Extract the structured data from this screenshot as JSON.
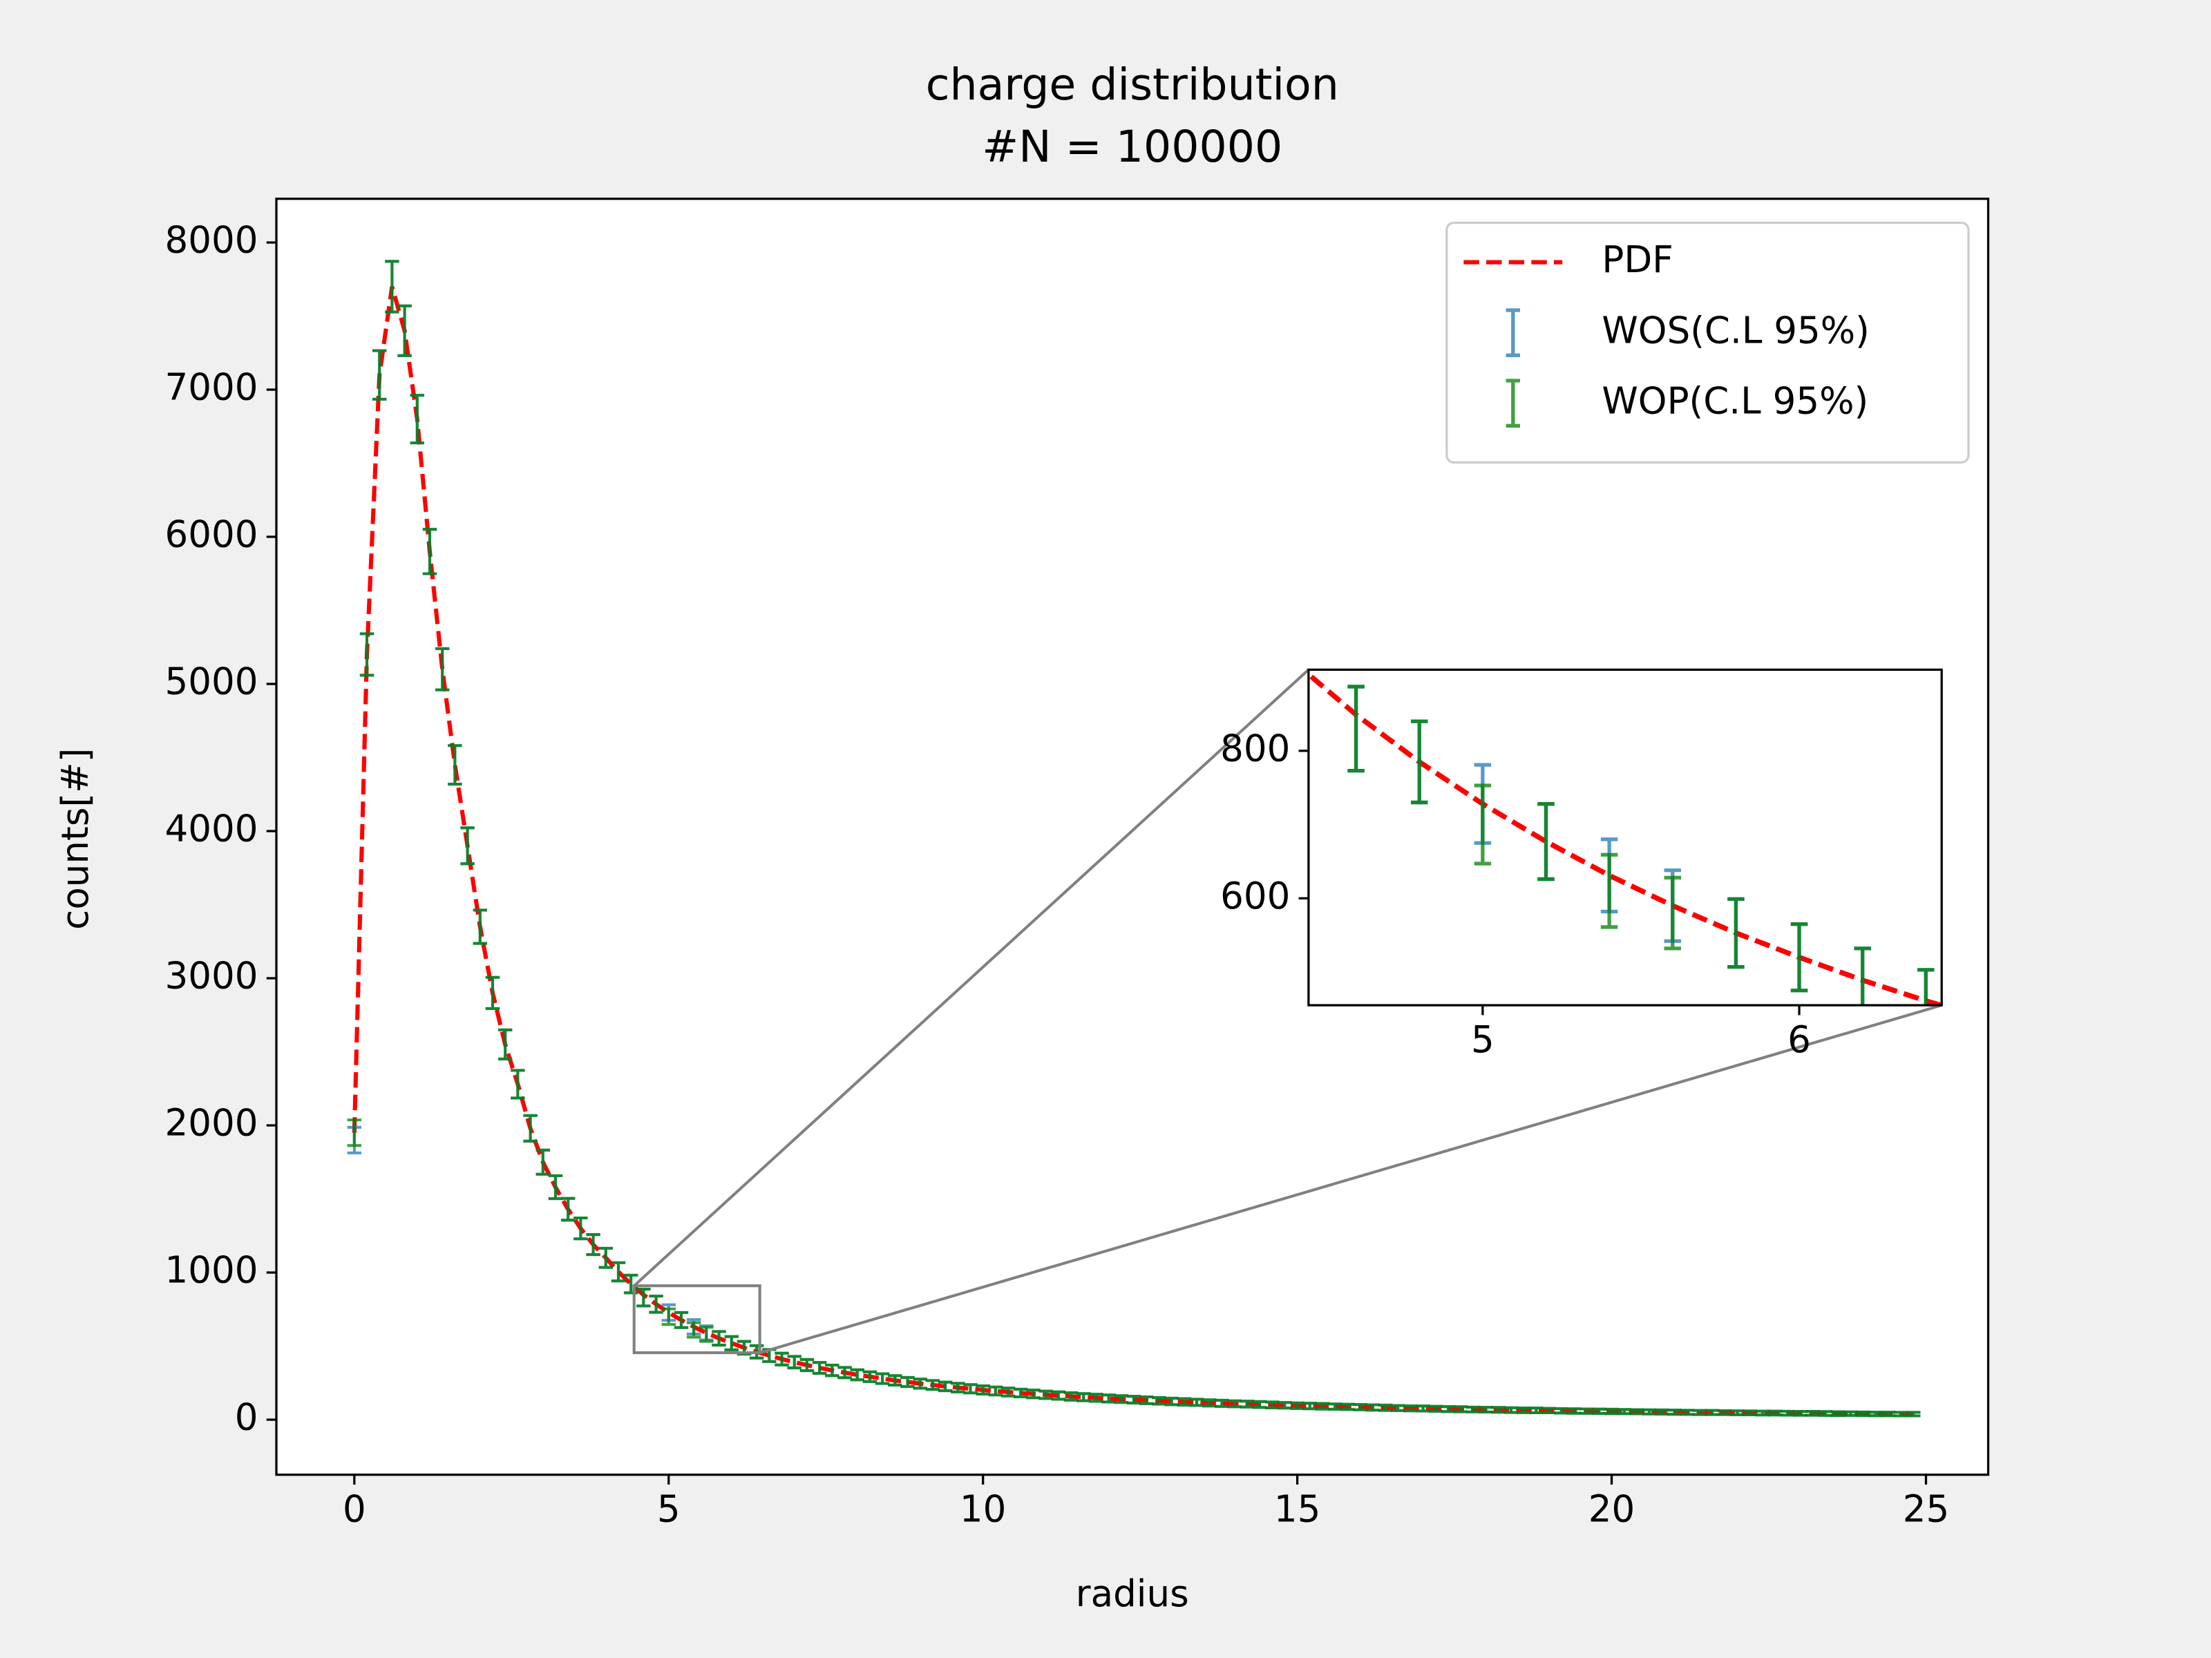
{
  "chart_data": {
    "type": "errorbar",
    "title": "charge distribution",
    "subtitle": "#N = 100000",
    "x_label": "radius",
    "y_label": "counts[#]",
    "xlim": [
      -1.24,
      25.99
    ],
    "ylim": [
      -374,
      8297
    ],
    "xticks": [
      0,
      5,
      10,
      15,
      20,
      25
    ],
    "yticks": [
      0,
      1000,
      2000,
      3000,
      4000,
      5000,
      6000,
      7000,
      8000
    ],
    "legend": "upper right",
    "x": [
      0,
      0.2,
      0.4,
      0.6,
      0.8,
      1,
      1.2,
      1.4,
      1.6,
      1.8,
      2,
      2.2,
      2.4,
      2.6,
      2.8,
      3,
      3.2,
      3.4,
      3.6,
      3.8,
      4,
      4.2,
      4.4,
      4.6,
      4.8,
      5,
      5.2,
      5.4,
      5.6,
      5.8,
      6,
      6.2,
      6.4,
      6.6,
      6.8,
      7,
      7.2,
      7.4,
      7.6,
      7.8,
      8,
      8.2,
      8.4,
      8.6,
      8.8,
      9,
      9.2,
      9.4,
      9.6,
      9.8,
      10,
      10.2,
      10.4,
      10.6,
      10.8,
      11,
      11.2,
      11.4,
      11.6,
      11.8,
      12,
      12.2,
      12.4,
      12.6,
      12.8,
      13,
      13.2,
      13.4,
      13.6,
      13.8,
      14,
      14.2,
      14.4,
      14.6,
      14.8,
      15,
      15.2,
      15.4,
      15.6,
      15.8,
      16,
      16.2,
      16.4,
      16.6,
      16.8,
      17,
      17.2,
      17.4,
      17.6,
      17.8,
      18,
      18.2,
      18.4,
      18.6,
      18.8,
      19,
      19.2,
      19.4,
      19.6,
      19.8,
      20,
      20.2,
      20.4,
      20.6,
      20.8,
      21,
      21.2,
      21.4,
      21.6,
      21.8,
      22,
      22.2,
      22.4,
      22.6,
      22.8,
      23,
      23.2,
      23.4,
      23.6,
      23.8,
      24,
      24.2,
      24.4,
      24.6,
      24.8
    ],
    "series": [
      {
        "name": "PDF",
        "type": "line",
        "color": "#ff0000",
        "dashed": true,
        "values": [
          1950,
          5200,
          7100,
          7700,
          7400,
          6800,
          5900,
          5100,
          4450,
          3900,
          3350,
          2900,
          2550,
          2280,
          1980,
          1750,
          1580,
          1430,
          1300,
          1190,
          1100,
          1005,
          922,
          849,
          785,
          728,
          677,
          631,
          590,
          553,
          520,
          489,
          461,
          436,
          412,
          391,
          371,
          352,
          335,
          320,
          305,
          292,
          279,
          267,
          256,
          245,
          236,
          226,
          218,
          210,
          202,
          195,
          188,
          181,
          175,
          169,
          164,
          158,
          153,
          149,
          144,
          140,
          136,
          132,
          128,
          124,
          121,
          118,
          114,
          111,
          108,
          106,
          103,
          100,
          98,
          95,
          93,
          91,
          89,
          87,
          85,
          83,
          81,
          79,
          77,
          76,
          74,
          72,
          71,
          69,
          68,
          67,
          65,
          64,
          63,
          62,
          60,
          59,
          58,
          57,
          56,
          55,
          54,
          53,
          52,
          51,
          50,
          49,
          49,
          48,
          47,
          46,
          45,
          45,
          44,
          43,
          43,
          42,
          41,
          41,
          40,
          39,
          39,
          38,
          38
        ]
      },
      {
        "name": "WOS(C.L 95%)",
        "type": "errorbar",
        "color": "#1f77b4",
        "values": [
          1900,
          5200,
          7100,
          7700,
          7400,
          6800,
          5900,
          5100,
          4450,
          3900,
          3350,
          2900,
          2550,
          2280,
          1980,
          1750,
          1580,
          1430,
          1300,
          1190,
          1100,
          1005,
          922,
          830,
          785,
          728,
          677,
          631,
          590,
          553,
          520,
          489,
          461,
          436,
          412,
          391,
          371,
          352,
          335,
          320,
          305,
          292,
          279,
          267,
          256,
          245,
          236,
          226,
          218,
          210,
          202,
          195,
          188,
          181,
          175,
          169,
          164,
          158,
          153,
          149,
          144,
          140,
          136,
          132,
          128,
          124,
          121,
          118,
          114,
          111,
          108,
          106,
          103,
          100,
          98,
          95,
          93,
          91,
          89,
          87,
          85,
          83,
          81,
          79,
          77,
          76,
          74,
          72,
          71,
          69,
          68,
          67,
          65,
          64,
          63,
          62,
          60,
          59,
          58,
          57,
          56,
          55,
          54,
          53,
          52,
          51,
          50,
          49,
          49,
          48,
          47,
          46,
          45,
          45,
          44,
          43,
          43,
          42,
          41,
          41,
          40,
          39,
          39,
          38,
          38
        ],
        "errors": [
          87,
          141,
          165,
          172,
          169,
          162,
          151,
          140,
          131,
          122,
          113,
          106,
          99,
          94,
          87,
          82,
          78,
          74,
          71,
          68,
          65,
          62,
          60,
          57,
          55,
          53,
          51,
          49,
          48,
          46,
          45,
          43,
          42,
          41,
          40,
          39,
          38,
          37,
          36,
          35,
          34,
          33,
          33,
          32,
          31,
          31,
          30,
          29,
          29,
          28,
          28,
          27,
          27,
          26,
          26,
          25,
          25,
          25,
          24,
          24,
          24,
          23,
          23,
          23,
          22,
          22,
          22,
          21,
          21,
          21,
          20,
          20,
          20,
          20,
          19,
          19,
          19,
          19,
          18,
          18,
          18,
          18,
          18,
          17,
          17,
          17,
          17,
          17,
          17,
          16,
          16,
          16,
          16,
          16,
          16,
          15,
          15,
          15,
          15,
          15,
          15,
          14,
          14,
          14,
          14,
          14,
          14,
          14,
          14,
          13,
          13,
          13,
          13,
          13,
          13,
          13,
          13,
          13,
          13,
          12,
          12,
          12,
          12,
          12,
          12
        ]
      },
      {
        "name": "WOP(C.L 95%)",
        "type": "errorbar",
        "color": "#008000",
        "values": [
          1950,
          5200,
          7100,
          7700,
          7400,
          6800,
          5900,
          5100,
          4450,
          3900,
          3350,
          2900,
          2550,
          2280,
          1980,
          1750,
          1580,
          1430,
          1300,
          1190,
          1100,
          1005,
          922,
          830,
          785,
          700,
          677,
          610,
          580,
          553,
          520,
          489,
          461,
          436,
          412,
          391,
          371,
          352,
          335,
          320,
          305,
          292,
          279,
          267,
          256,
          245,
          236,
          226,
          218,
          210,
          202,
          195,
          188,
          181,
          175,
          169,
          164,
          158,
          153,
          149,
          144,
          140,
          136,
          132,
          128,
          124,
          121,
          118,
          114,
          111,
          108,
          106,
          103,
          100,
          98,
          95,
          93,
          91,
          89,
          87,
          85,
          83,
          81,
          79,
          77,
          76,
          74,
          72,
          71,
          69,
          68,
          67,
          65,
          64,
          63,
          62,
          60,
          59,
          58,
          57,
          56,
          55,
          54,
          53,
          52,
          51,
          50,
          49,
          49,
          48,
          47,
          46,
          45,
          45,
          44,
          43,
          43,
          42,
          41,
          41,
          40,
          39,
          39,
          38,
          38
        ],
        "errors": [
          87,
          141,
          165,
          172,
          169,
          162,
          151,
          140,
          131,
          122,
          113,
          106,
          99,
          94,
          87,
          82,
          78,
          74,
          71,
          68,
          65,
          62,
          60,
          57,
          55,
          53,
          51,
          49,
          48,
          46,
          45,
          43,
          42,
          41,
          40,
          39,
          38,
          37,
          36,
          35,
          34,
          33,
          33,
          32,
          31,
          31,
          30,
          29,
          29,
          28,
          28,
          27,
          27,
          26,
          26,
          25,
          25,
          25,
          24,
          24,
          24,
          23,
          23,
          23,
          22,
          22,
          22,
          21,
          21,
          21,
          20,
          20,
          20,
          20,
          19,
          19,
          19,
          19,
          18,
          18,
          18,
          18,
          18,
          17,
          17,
          17,
          17,
          17,
          17,
          16,
          16,
          16,
          16,
          16,
          16,
          15,
          15,
          15,
          15,
          15,
          15,
          14,
          14,
          14,
          14,
          14,
          14,
          14,
          14,
          13,
          13,
          13,
          13,
          13,
          13,
          13,
          13,
          13,
          13,
          12,
          12,
          12,
          12,
          12,
          12
        ]
      }
    ],
    "inset": {
      "xlim": [
        4.45,
        6.45
      ],
      "ylim": [
        455,
        910
      ],
      "xticks": [
        5,
        6
      ],
      "yticks": [
        600,
        800
      ]
    }
  }
}
